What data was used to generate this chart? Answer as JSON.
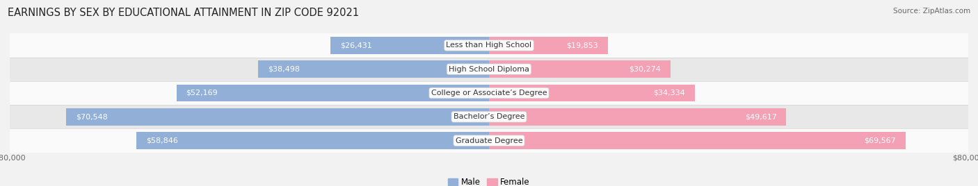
{
  "title": "EARNINGS BY SEX BY EDUCATIONAL ATTAINMENT IN ZIP CODE 92021",
  "source": "Source: ZipAtlas.com",
  "categories": [
    "Less than High School",
    "High School Diploma",
    "College or Associate’s Degree",
    "Bachelor’s Degree",
    "Graduate Degree"
  ],
  "male_values": [
    26431,
    38498,
    52169,
    70548,
    58846
  ],
  "female_values": [
    19853,
    30274,
    34334,
    49617,
    69567
  ],
  "male_color": "#92afd7",
  "female_color": "#f08080",
  "bar_height": 0.72,
  "xlim": 80000,
  "background_color": "#f2f2f2",
  "title_fontsize": 10.5,
  "source_fontsize": 7.5,
  "label_fontsize": 8,
  "category_fontsize": 8,
  "axis_label_fontsize": 8,
  "legend_fontsize": 8.5,
  "row_bg_light": "#fafafa",
  "row_bg_dark": "#e8e8e8"
}
